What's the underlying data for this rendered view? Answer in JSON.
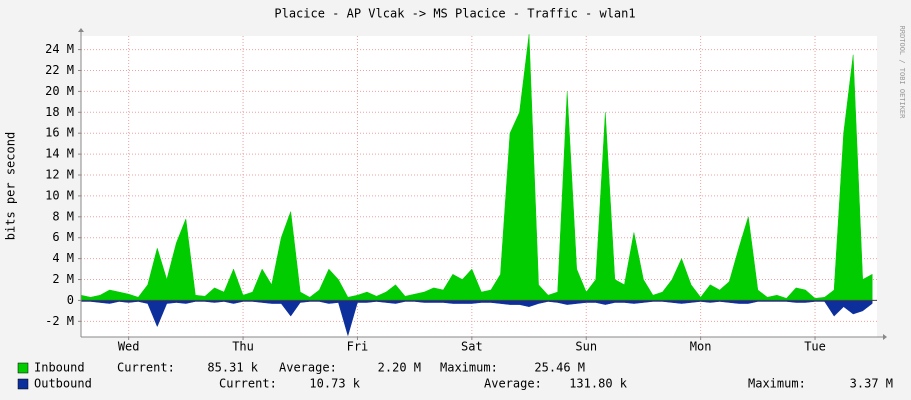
{
  "chart_data": {
    "type": "area",
    "title": "Placice - AP Vlcak -> MS Placice - Traffic - wlan1",
    "y_label": "bits per second",
    "watermark": "RRDTOOL / TOBI OETIKER",
    "xlim": [
      0,
      167
    ],
    "xticks": [
      {
        "value": 10,
        "label": "Wed"
      },
      {
        "value": 34,
        "label": "Thu"
      },
      {
        "value": 58,
        "label": "Fri"
      },
      {
        "value": 82,
        "label": "Sat"
      },
      {
        "value": 106,
        "label": "Sun"
      },
      {
        "value": 130,
        "label": "Mon"
      },
      {
        "value": 154,
        "label": "Tue"
      }
    ],
    "ylim": [
      -3500000,
      25300000
    ],
    "yticks": [
      {
        "value": -2000000,
        "label": "-2 M"
      },
      {
        "value": 0,
        "label": "0"
      },
      {
        "value": 2000000,
        "label": "2 M"
      },
      {
        "value": 4000000,
        "label": "4 M"
      },
      {
        "value": 6000000,
        "label": "6 M"
      },
      {
        "value": 8000000,
        "label": "8 M"
      },
      {
        "value": 10000000,
        "label": "10 M"
      },
      {
        "value": 12000000,
        "label": "12 M"
      },
      {
        "value": 14000000,
        "label": "14 M"
      },
      {
        "value": 16000000,
        "label": "16 M"
      },
      {
        "value": 18000000,
        "label": "18 M"
      },
      {
        "value": 20000000,
        "label": "20 M"
      },
      {
        "value": 22000000,
        "label": "22 M"
      },
      {
        "value": 24000000,
        "label": "24 M"
      }
    ],
    "grid": true,
    "x": [
      0,
      2,
      4,
      6,
      8,
      10,
      12,
      14,
      16,
      18,
      20,
      22,
      24,
      26,
      28,
      30,
      32,
      34,
      36,
      38,
      40,
      42,
      44,
      46,
      48,
      50,
      52,
      54,
      56,
      58,
      60,
      62,
      64,
      66,
      68,
      70,
      72,
      74,
      76,
      78,
      80,
      82,
      84,
      86,
      88,
      90,
      92,
      94,
      96,
      98,
      100,
      102,
      104,
      106,
      108,
      110,
      112,
      114,
      116,
      118,
      120,
      122,
      124,
      126,
      128,
      130,
      132,
      134,
      136,
      138,
      140,
      142,
      144,
      146,
      148,
      150,
      152,
      154,
      156,
      158,
      160,
      162,
      164,
      166
    ],
    "series": [
      {
        "name": "Inbound",
        "color": "#00cc00",
        "values": [
          500000,
          300000,
          500000,
          1000000,
          800000,
          600000,
          300000,
          1500000,
          5000000,
          2000000,
          5500000,
          7800000,
          500000,
          400000,
          1200000,
          800000,
          3000000,
          500000,
          800000,
          3000000,
          1500000,
          6000000,
          8500000,
          800000,
          300000,
          1000000,
          3000000,
          2000000,
          300000,
          500000,
          800000,
          400000,
          800000,
          1500000,
          400000,
          600000,
          800000,
          1200000,
          1000000,
          2500000,
          2000000,
          3000000,
          800000,
          1000000,
          2500000,
          16000000,
          18000000,
          25460000,
          1500000,
          500000,
          800000,
          20000000,
          3000000,
          800000,
          2000000,
          18000000,
          2000000,
          1500000,
          6500000,
          2000000,
          500000,
          800000,
          2000000,
          4000000,
          1500000,
          300000,
          1500000,
          1000000,
          1800000,
          5000000,
          8000000,
          1000000,
          300000,
          500000,
          200000,
          1200000,
          1000000,
          200000,
          300000,
          1000000,
          16000000,
          23500000,
          2000000,
          2500000
        ],
        "stats": [
          {
            "label": "Current:",
            "value": "85.31 k"
          },
          {
            "label": "Average:",
            "value": "2.20 M"
          },
          {
            "label": "Maximum:",
            "value": "25.46 M"
          }
        ]
      },
      {
        "name": "Outbound",
        "color": "#0c2f9c",
        "values": [
          -100000,
          -100000,
          -200000,
          -300000,
          -100000,
          -200000,
          -100000,
          -300000,
          -2500000,
          -300000,
          -200000,
          -300000,
          -100000,
          -100000,
          -200000,
          -100000,
          -300000,
          -100000,
          -100000,
          -200000,
          -300000,
          -300000,
          -1500000,
          -200000,
          -100000,
          -100000,
          -300000,
          -200000,
          -3370000,
          -200000,
          -200000,
          -100000,
          -200000,
          -300000,
          -100000,
          -100000,
          -200000,
          -200000,
          -200000,
          -300000,
          -300000,
          -300000,
          -200000,
          -200000,
          -300000,
          -400000,
          -400000,
          -600000,
          -300000,
          -100000,
          -200000,
          -400000,
          -300000,
          -200000,
          -200000,
          -400000,
          -200000,
          -200000,
          -300000,
          -200000,
          -100000,
          -100000,
          -200000,
          -300000,
          -200000,
          -100000,
          -200000,
          -100000,
          -200000,
          -300000,
          -300000,
          -100000,
          -100000,
          -100000,
          -100000,
          -200000,
          -200000,
          -100000,
          -100000,
          -1500000,
          -600000,
          -1300000,
          -1000000,
          -300000
        ],
        "stats": [
          {
            "label": "Current:",
            "value": "10.73 k"
          },
          {
            "label": "Average:",
            "value": "131.80 k"
          },
          {
            "label": "Maximum:",
            "value": "3.37 M"
          }
        ]
      }
    ]
  }
}
